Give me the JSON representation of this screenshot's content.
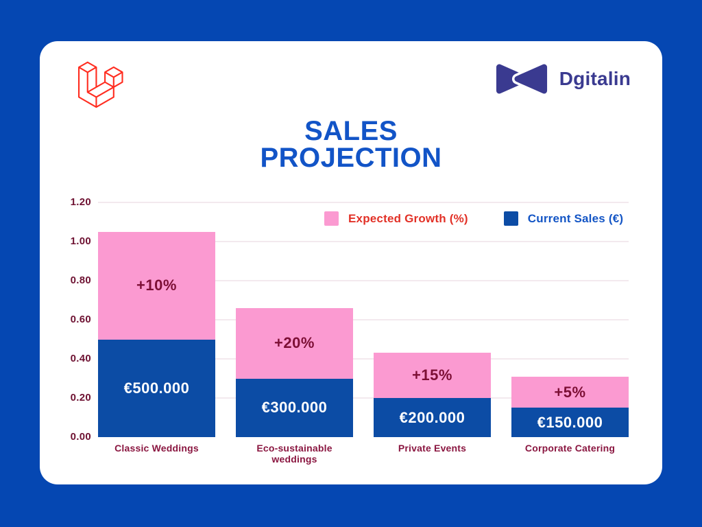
{
  "header": {
    "laravel_icon": "laravel-logo",
    "brand_icon": "dgitalin-bowtie-icon",
    "brand_name": "Dgitalin"
  },
  "title": {
    "line1": "SALES",
    "line2": "PROJECTION"
  },
  "colors": {
    "background_blue": "#0547b2",
    "card_white": "#ffffff",
    "title_blue": "#1254c7",
    "laravel_red": "#ff2d20",
    "dgitalin_indigo": "#3a3a90",
    "bar_pink": "#fb9ad1",
    "bar_blue": "#0c4ca5",
    "y_tick_maroon": "#6e1232",
    "x_label_maroon": "#8a1640",
    "growth_label_maroon": "#7c0f35",
    "gridline_pink": "#f3e9ee",
    "legend_red_text": "#e23127",
    "legend_blue_text": "#1355c5"
  },
  "chart_data": {
    "type": "bar",
    "stacked": true,
    "title": "SALES PROJECTION",
    "xlabel": "",
    "ylabel": "",
    "ylim": [
      0,
      1.2
    ],
    "grid": true,
    "legend_position": "top",
    "categories": [
      "Classic Weddings",
      "Eco-sustainable weddings",
      "Private Events",
      "Corporate Catering"
    ],
    "series": [
      {
        "name": "Current Sales (€)",
        "color": "#0c4ca5",
        "values": [
          0.5,
          0.3,
          0.2,
          0.15
        ],
        "labels": [
          "€500.000",
          "€300.000",
          "€200.000",
          "€150.000"
        ],
        "label_color": "#ffffff"
      },
      {
        "name": "Expected Growth (%)",
        "color": "#fb9ad1",
        "values": [
          0.55,
          0.36,
          0.23,
          0.1575
        ],
        "labels": [
          "+10%",
          "+20%",
          "+15%",
          "+5%"
        ],
        "label_color": "#7c0f35"
      }
    ],
    "legend": [
      {
        "label": "Expected Growth (%)",
        "swatch": "#fb9ad1",
        "text_color": "#e23127"
      },
      {
        "label": "Current Sales (€)",
        "swatch": "#0c4ca5",
        "text_color": "#1355c5"
      }
    ],
    "yticks": [
      "0.00",
      "0.20",
      "0.40",
      "0.60",
      "0.80",
      "1.00",
      "1.20"
    ]
  }
}
